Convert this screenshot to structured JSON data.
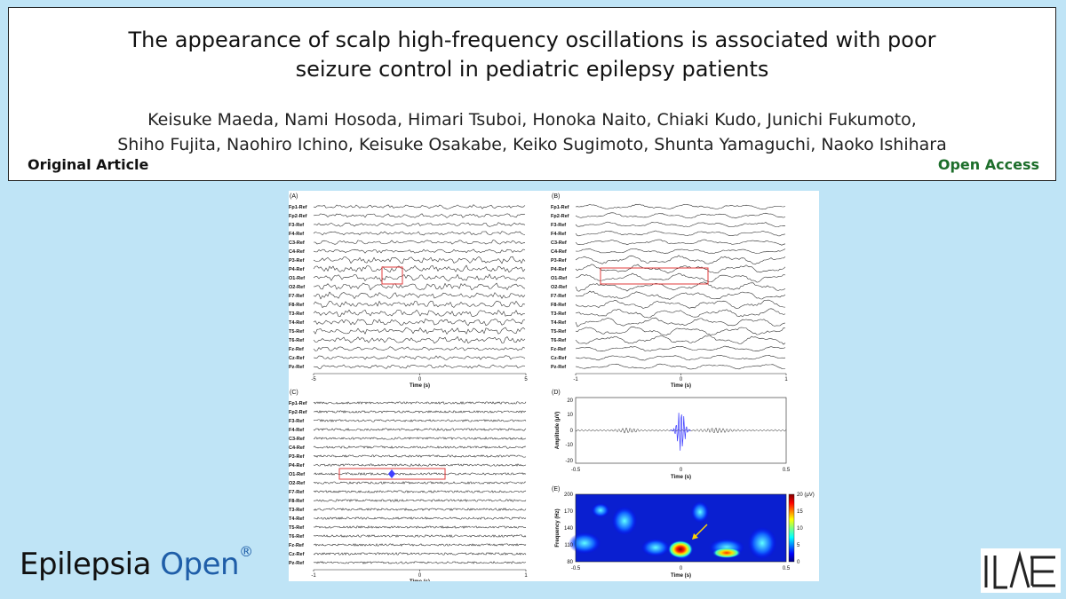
{
  "article": {
    "title_line1": "The appearance of scalp high-frequency oscillations is associated with poor",
    "title_line2": "seizure control in pediatric epilepsy patients",
    "authors_line1": "Keisuke Maeda, Nami Hosoda, Himari Tsuboi, Honoka Naito, Chiaki Kudo, Junichi Fukumoto,",
    "authors_line2": "Shiho Fujita, Naohiro Ichino, Keisuke Osakabe, Keiko Sugimoto, Shunta Yamaguchi, Naoko Ishihara",
    "type": "Original Article",
    "access": "Open Access"
  },
  "journal": {
    "name": "Epilepsia",
    "name2": "Open",
    "mark": "®"
  },
  "logo": {
    "text": "ILAE"
  },
  "colors": {
    "background": "#bfe4f6",
    "access_green": "#1d6e2b",
    "journal_blue": "#1f5ea8",
    "highlight_red": "#e23b3b"
  },
  "figure": {
    "channels": [
      "Fp1-Ref",
      "Fp2-Ref",
      "F3-Ref",
      "F4-Ref",
      "C3-Ref",
      "C4-Ref",
      "P3-Ref",
      "P4-Ref",
      "O1-Ref",
      "O2-Ref",
      "F7-Ref",
      "F8-Ref",
      "T3-Ref",
      "T4-Ref",
      "T5-Ref",
      "T6-Ref",
      "Fz-Ref",
      "Cz-Ref",
      "Pz-Ref"
    ],
    "panels": {
      "A": {
        "label": "(A)",
        "xlabel": "Time (s)",
        "xticks": [
          "-5",
          "0",
          "5"
        ]
      },
      "B": {
        "label": "(B)",
        "xlabel": "Time (s)",
        "xticks": [
          "-1",
          "0",
          "1"
        ]
      },
      "C": {
        "label": "(C)",
        "xlabel": "Time (s)",
        "xticks": [
          "-1",
          "0",
          "1"
        ]
      },
      "D": {
        "label": "(D)",
        "xlabel": "Time (s)",
        "ylabel": "Amplitude (µV)",
        "xticks": [
          "-0.5",
          "0",
          "0.5"
        ],
        "yticks": [
          "20",
          "10",
          "0",
          "-10",
          "-20"
        ]
      },
      "E": {
        "label": "(E)",
        "xlabel": "Time (s)",
        "ylabel": "Frequency (Hz)",
        "xticks": [
          "-0.5",
          "0",
          "0.5"
        ],
        "yticks": [
          "200",
          "170",
          "140",
          "110",
          "80"
        ],
        "colorbar_ticks": [
          "20 (µV)",
          "15",
          "10",
          "5",
          "0"
        ]
      }
    }
  }
}
